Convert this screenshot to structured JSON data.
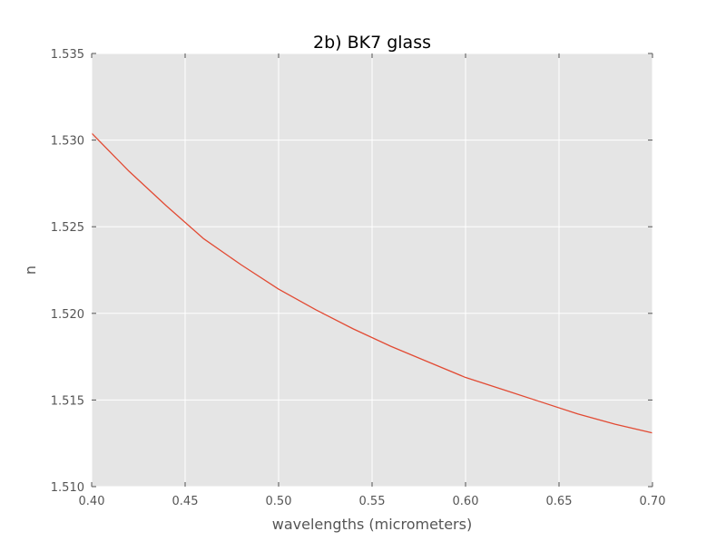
{
  "chart_data": {
    "type": "line",
    "title": "2b) BK7 glass",
    "xlabel": "wavelengths (micrometers)",
    "ylabel": "n",
    "xlim": [
      0.4,
      0.7
    ],
    "ylim": [
      1.51,
      1.535
    ],
    "xticks": [
      "0.40",
      "0.45",
      "0.50",
      "0.55",
      "0.60",
      "0.65",
      "0.70"
    ],
    "yticks": [
      "1.510",
      "1.515",
      "1.520",
      "1.525",
      "1.530",
      "1.535"
    ],
    "grid": true,
    "background": "#e5e5e5",
    "series": [
      {
        "color": "#e24a33",
        "x": [
          0.4,
          0.42,
          0.44,
          0.46,
          0.48,
          0.5,
          0.52,
          0.54,
          0.56,
          0.58,
          0.6,
          0.62,
          0.64,
          0.66,
          0.68,
          0.7
        ],
        "y": [
          1.5304,
          1.5282,
          1.5262,
          1.5243,
          1.5228,
          1.5214,
          1.5202,
          1.5191,
          1.5181,
          1.5172,
          1.5163,
          1.5156,
          1.5149,
          1.5142,
          1.5136,
          1.5131
        ]
      }
    ]
  }
}
